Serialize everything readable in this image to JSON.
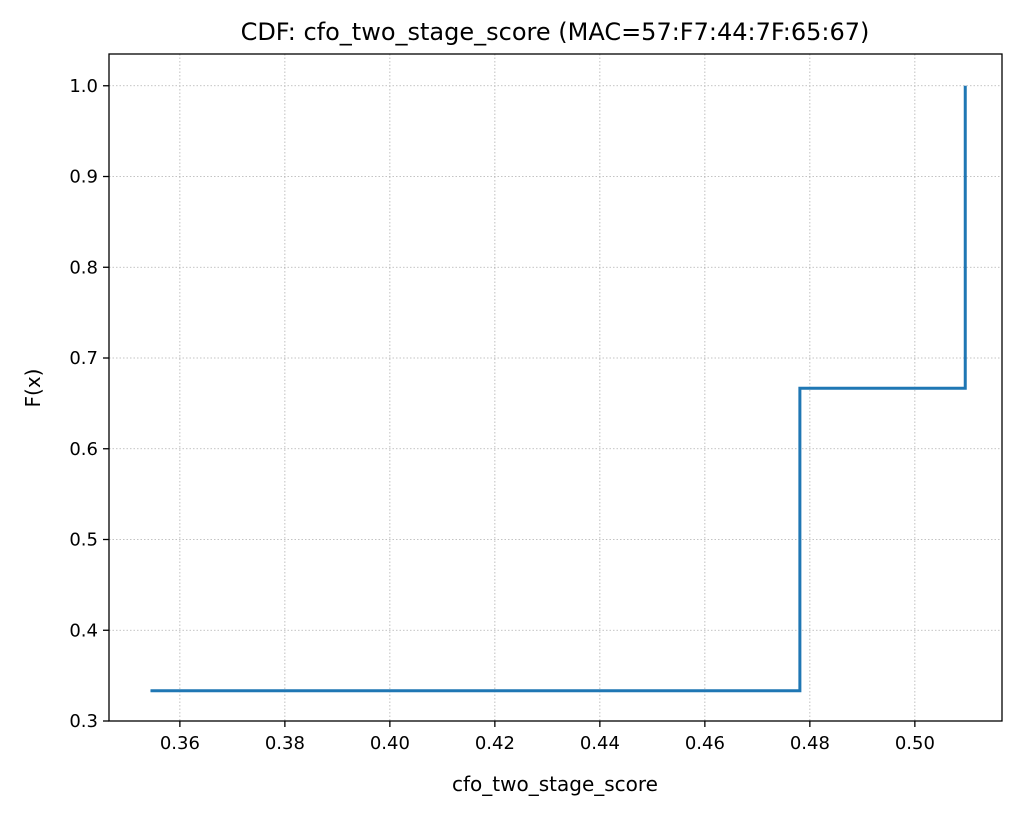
{
  "chart_data": {
    "type": "line",
    "title": "CDF: cfo_two_stage_score (MAC=57:F7:44:7F:65:67)",
    "xlabel": "cfo_two_stage_score",
    "ylabel": "F(x)",
    "xlim": [
      0.3465,
      0.5166
    ],
    "ylim": [
      0.3,
      1.035
    ],
    "xticks": [
      0.36,
      0.38,
      0.4,
      0.42,
      0.44,
      0.46,
      0.48,
      0.5
    ],
    "xtick_labels": [
      "0.36",
      "0.38",
      "0.40",
      "0.42",
      "0.44",
      "0.46",
      "0.48",
      "0.50"
    ],
    "yticks": [
      0.3,
      0.4,
      0.5,
      0.6,
      0.7,
      0.8,
      0.9,
      1.0
    ],
    "ytick_labels": [
      "0.3",
      "0.4",
      "0.5",
      "0.6",
      "0.7",
      "0.8",
      "0.9",
      "1.0"
    ],
    "grid": true,
    "step": "post",
    "series": [
      {
        "x": [
          0.3544,
          0.4781,
          0.5096
        ],
        "y": [
          0.3333,
          0.6667,
          1.0
        ],
        "color": "#1f77b4"
      }
    ]
  }
}
